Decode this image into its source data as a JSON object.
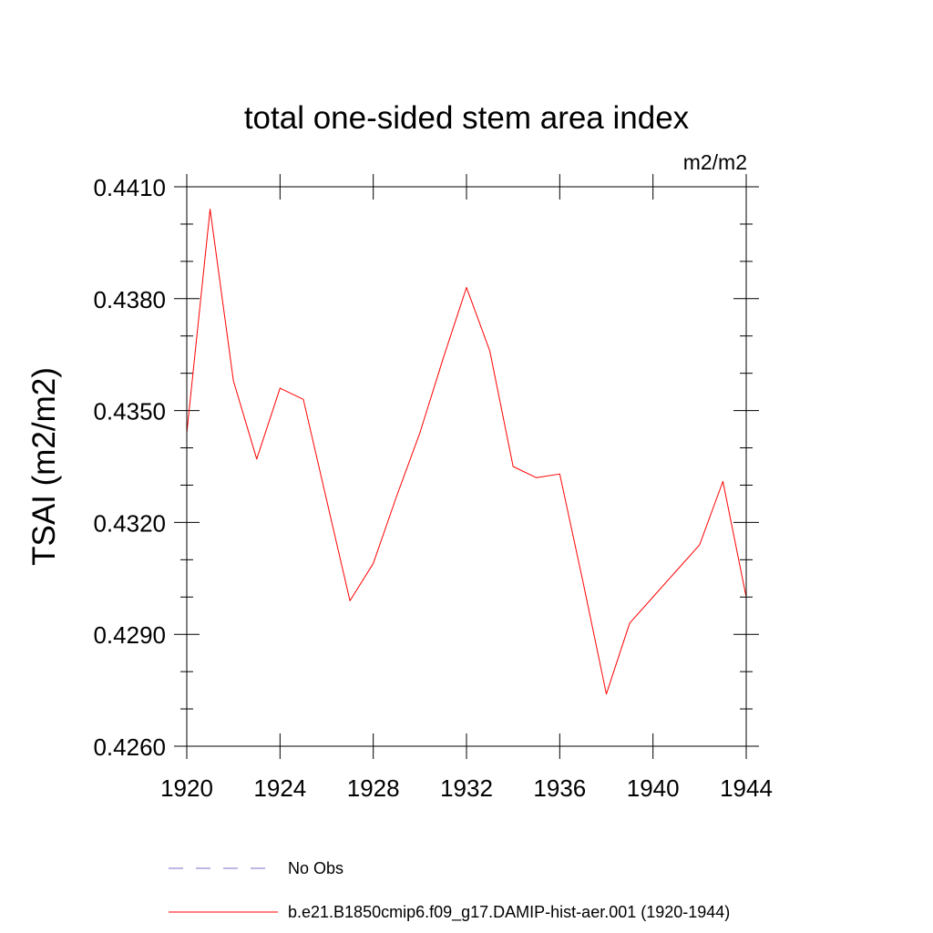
{
  "chart_data": {
    "type": "line",
    "title": "total one-sided stem area index",
    "units": "m2/m2",
    "ylabel": "TSAI  (m2/m2)",
    "xlabel": "",
    "xlim": [
      1920,
      1944
    ],
    "ylim": [
      0.426,
      0.441
    ],
    "xticks": [
      1920,
      1924,
      1928,
      1932,
      1936,
      1940,
      1944
    ],
    "xtick_labels": [
      "1920",
      "1924",
      "1928",
      "1932",
      "1936",
      "1940",
      "1944"
    ],
    "yticks": [
      0.426,
      0.429,
      0.432,
      0.435,
      0.438,
      0.441
    ],
    "ytick_labels": [
      "0.4260",
      "0.4290",
      "0.4320",
      "0.4350",
      "0.4380",
      "0.4410"
    ],
    "grid": false,
    "legend_position": "bottom",
    "series": [
      {
        "name": "No Obs",
        "color": "#7b6fc9",
        "dash": "dashed",
        "x": [],
        "y": []
      },
      {
        "name": "b.e21.B1850cmip6.f09_g17.DAMIP-hist-aer.001 (1920-1944)",
        "color": "#ff0000",
        "dash": "solid",
        "x": [
          1920,
          1921,
          1922,
          1923,
          1924,
          1925,
          1926,
          1927,
          1928,
          1929,
          1930,
          1931,
          1932,
          1933,
          1934,
          1935,
          1936,
          1937,
          1938,
          1939,
          1940,
          1941,
          1942,
          1943,
          1944
        ],
        "y": [
          0.4344,
          0.4404,
          0.4358,
          0.4337,
          0.4356,
          0.4353,
          0.4326,
          0.4299,
          0.4309,
          0.4327,
          0.4344,
          0.4364,
          0.4383,
          0.4366,
          0.4335,
          0.4332,
          0.4333,
          0.4304,
          0.4274,
          0.4293,
          0.43,
          0.4307,
          0.4314,
          0.4331,
          0.43
        ]
      }
    ]
  }
}
